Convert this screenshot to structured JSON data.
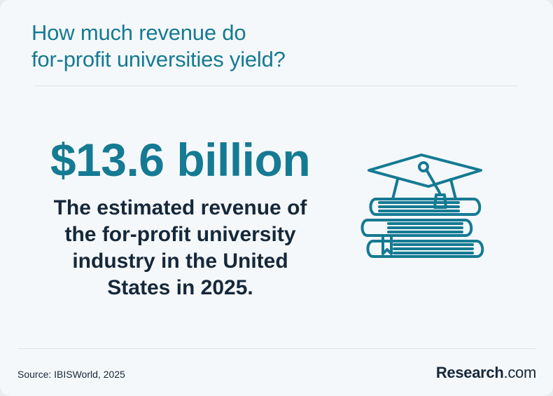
{
  "header": {
    "title_line1": "How much revenue do",
    "title_line2": "for-profit universities yield?"
  },
  "stat": {
    "value": "$13.6 billion",
    "desc_lines": [
      "The estimated revenue of",
      "the for-profit university",
      "industry in the United",
      "States in 2025."
    ]
  },
  "illustration": {
    "icon": "graduation-cap-on-books-icon"
  },
  "footer": {
    "source": "Source: IBISWorld, 2025",
    "brand_name": "Research",
    "brand_suffix": ".com"
  },
  "colors": {
    "accent": "#157a93",
    "text_dark": "#16283a",
    "background": "#f5f8fa",
    "divider": "#dde3e8"
  }
}
